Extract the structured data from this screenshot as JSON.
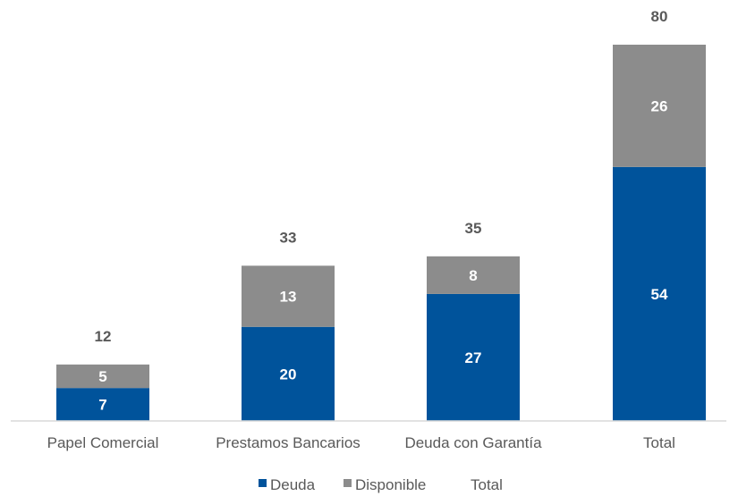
{
  "chart_data": {
    "type": "bar",
    "stacked": true,
    "title": "",
    "xlabel": "",
    "ylabel": "",
    "ylim": [
      0,
      80
    ],
    "grid": false,
    "legend_placement": "bottom",
    "categories": [
      "Papel Comercial",
      "Prestamos Bancarios",
      "Deuda con Garantía",
      "Total"
    ],
    "series": [
      {
        "name": "Deuda",
        "color": "#00539b",
        "values": [
          7,
          20,
          27,
          54
        ]
      },
      {
        "name": "Disponible",
        "color": "#8c8c8c",
        "values": [
          5,
          13,
          8,
          26
        ]
      }
    ],
    "totals": {
      "name": "Total",
      "values": [
        12,
        33,
        35,
        80
      ]
    },
    "colors": {
      "axis": "#d9d9d9",
      "text": "#595959",
      "segment_text": "#ffffff"
    }
  }
}
